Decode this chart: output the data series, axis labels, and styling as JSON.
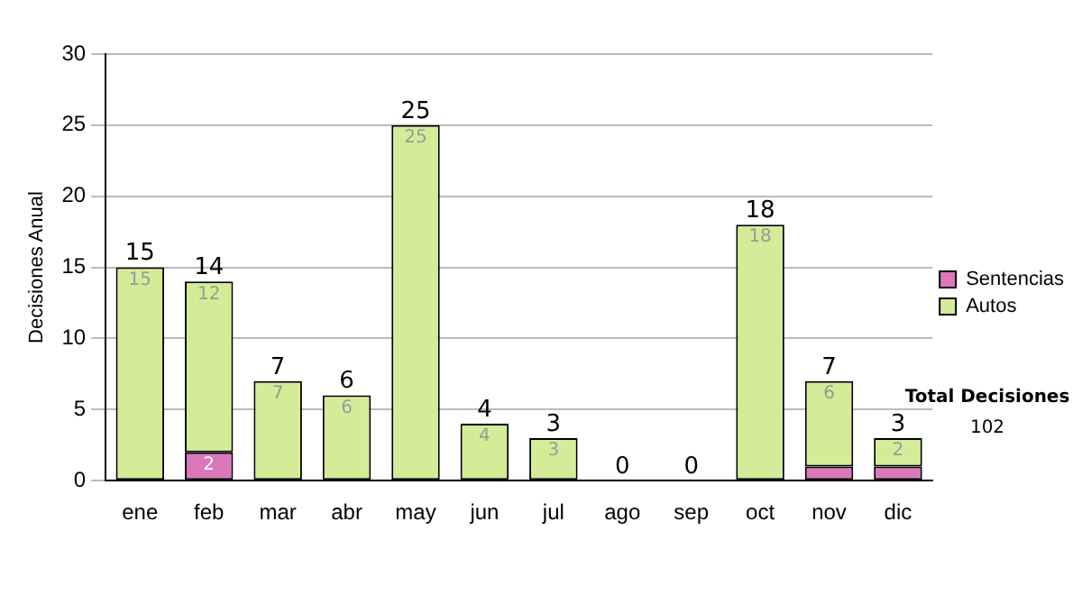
{
  "chart_data": {
    "type": "bar",
    "stacked": true,
    "ylabel": "Decisiones Anual",
    "categories": [
      "ene",
      "feb",
      "mar",
      "abr",
      "may",
      "jun",
      "jul",
      "ago",
      "sep",
      "oct",
      "nov",
      "dic"
    ],
    "series": [
      {
        "name": "Sentencias",
        "color": "#dd77bb",
        "values": [
          0,
          2,
          0,
          0,
          0,
          0,
          0,
          0,
          0,
          0,
          1,
          1
        ],
        "value_labels": [
          null,
          "2",
          null,
          null,
          null,
          null,
          null,
          null,
          null,
          null,
          null,
          null
        ]
      },
      {
        "name": "Autos",
        "color": "#d4ec98",
        "values": [
          15,
          12,
          7,
          6,
          25,
          4,
          3,
          0,
          0,
          18,
          6,
          2
        ],
        "value_labels": [
          "15",
          "12",
          "7",
          "6",
          "25",
          "4",
          "3",
          null,
          null,
          "18",
          "6",
          "2"
        ]
      }
    ],
    "totals": [
      "15",
      "14",
      "7",
      "6",
      "25",
      "4",
      "3",
      "0",
      "0",
      "18",
      "7",
      "3"
    ],
    "ylim": [
      0,
      30
    ],
    "yticks": [
      0,
      5,
      10,
      15,
      20,
      25,
      30
    ],
    "grid": "y",
    "legend": "right",
    "annotations": [
      "Total Decisiones",
      "102"
    ]
  }
}
